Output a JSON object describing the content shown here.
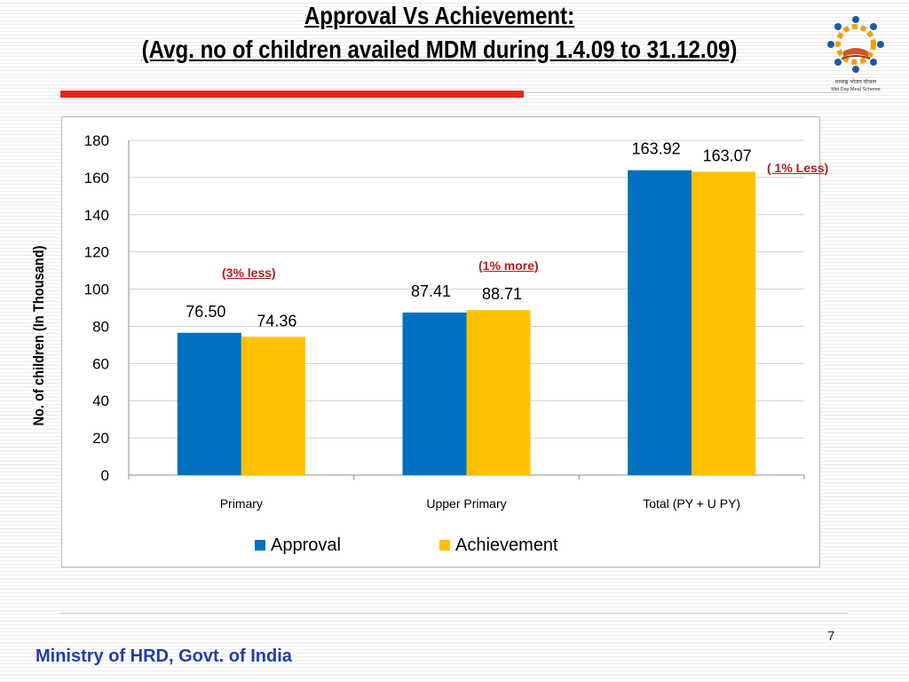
{
  "slide": {
    "title_line1": "Approval Vs Achievement:",
    "title_line2": " (Avg. no of children availed MDM during 1.4.09 to 31.12.09)",
    "logo_text": "मध्याह्न भोजन योजना",
    "logo_subtext": "Mid Day Meal Scheme",
    "page_number": "7",
    "footer": "Ministry of HRD, Govt. of India",
    "colors": {
      "accent_bar": "#e0271d",
      "footer_text": "#1f3fa8",
      "annotation_text": "#b01e1e"
    }
  },
  "chart_data": {
    "type": "bar",
    "title": "",
    "xlabel": "",
    "ylabel": "No. of children (In Thousand)",
    "ylim": [
      0,
      180
    ],
    "yticks": [
      0,
      20,
      40,
      60,
      80,
      100,
      120,
      140,
      160,
      180
    ],
    "categories": [
      "Primary",
      "Upper Primary",
      "Total (PY + U PY)"
    ],
    "series": [
      {
        "name": "Approval",
        "color": "#0070c0",
        "values": [
          76.5,
          87.41,
          163.92
        ],
        "labels": [
          "76.50",
          "87.41",
          "163.92"
        ]
      },
      {
        "name": "Achievement",
        "color": "#ffc000",
        "values": [
          74.36,
          88.71,
          163.07
        ],
        "labels": [
          "74.36",
          "88.71",
          "163.07"
        ]
      }
    ],
    "grid": true,
    "legend": "bottom",
    "annotations": [
      "(3%  less)",
      "(1%  more)",
      "( 1% Less)"
    ]
  }
}
